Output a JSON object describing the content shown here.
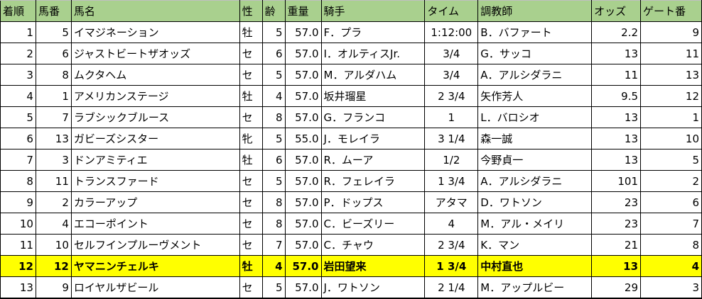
{
  "headers": [
    "着順",
    "馬番",
    "馬名",
    "性",
    "齢",
    "重量",
    "騎手",
    "タイム",
    "調教師",
    "オッズ",
    "ゲート番"
  ],
  "highlight_color": "#ffff00",
  "header_color": "#a9d08e",
  "rows": [
    [
      "1",
      "5",
      "イマジネーション",
      "牡",
      "5",
      "57.0",
      "F．プラ",
      "1:12:00",
      "B．バファート",
      "2.2",
      "9"
    ],
    [
      "2",
      "6",
      "ジャストビートザオッズ",
      "セ",
      "6",
      "57.0",
      "I．オルティスJr.",
      "3/4",
      "G．サッコ",
      "13",
      "11"
    ],
    [
      "3",
      "8",
      "ムクタヘム",
      "セ",
      "5",
      "57.0",
      "M．アルダハム",
      "3/4",
      "A．アルシダラニ",
      "11",
      "13"
    ],
    [
      "4",
      "1",
      "アメリカンステージ",
      "牡",
      "4",
      "57.0",
      "坂井瑠星",
      "2 3/4",
      "矢作芳人",
      "9.5",
      "12"
    ],
    [
      "5",
      "7",
      "ラブシックブルース",
      "セ",
      "8",
      "57.0",
      "G．フランコ",
      "1",
      "L．バロシオ",
      "13",
      "1"
    ],
    [
      "6",
      "13",
      "ガビーズシスター",
      "牝",
      "5",
      "55.0",
      "J．モレイラ",
      "3 1/4",
      "森一誠",
      "13",
      "10"
    ],
    [
      "7",
      "3",
      "ドンアミティエ",
      "牡",
      "6",
      "57.0",
      "R．ムーア",
      "1/2",
      "今野貞一",
      "13",
      "5"
    ],
    [
      "8",
      "11",
      "トランスファード",
      "セ",
      "5",
      "57.0",
      "R．フェレイラ",
      "1 3/4",
      "A．アルシダラニ",
      "101",
      "2"
    ],
    [
      "9",
      "2",
      "カラーアップ",
      "セ",
      "8",
      "57.0",
      "P．ドップス",
      "アタマ",
      "D．ワトソン",
      "23",
      "6"
    ],
    [
      "10",
      "4",
      "エコーポイント",
      "セ",
      "8",
      "57.0",
      "C．ビーズリー",
      "4",
      "M．アル・メイリ",
      "23",
      "7"
    ],
    [
      "11",
      "10",
      "セルフインプルーヴメント",
      "セ",
      "7",
      "57.0",
      "C．チャウ",
      "2 3/4",
      "K．マン",
      "21",
      "8"
    ],
    [
      "12",
      "12",
      "ヤマニンチェルキ",
      "牡",
      "4",
      "57.0",
      "岩田望来",
      "1 3/4",
      "中村直也",
      "13",
      "4"
    ],
    [
      "13",
      "9",
      "ロイヤルザビール",
      "セ",
      "5",
      "57.0",
      "J．ワトソン",
      "2 1/4",
      "M．アップルビー",
      "29",
      "3"
    ]
  ],
  "highlighted_row": 11
}
